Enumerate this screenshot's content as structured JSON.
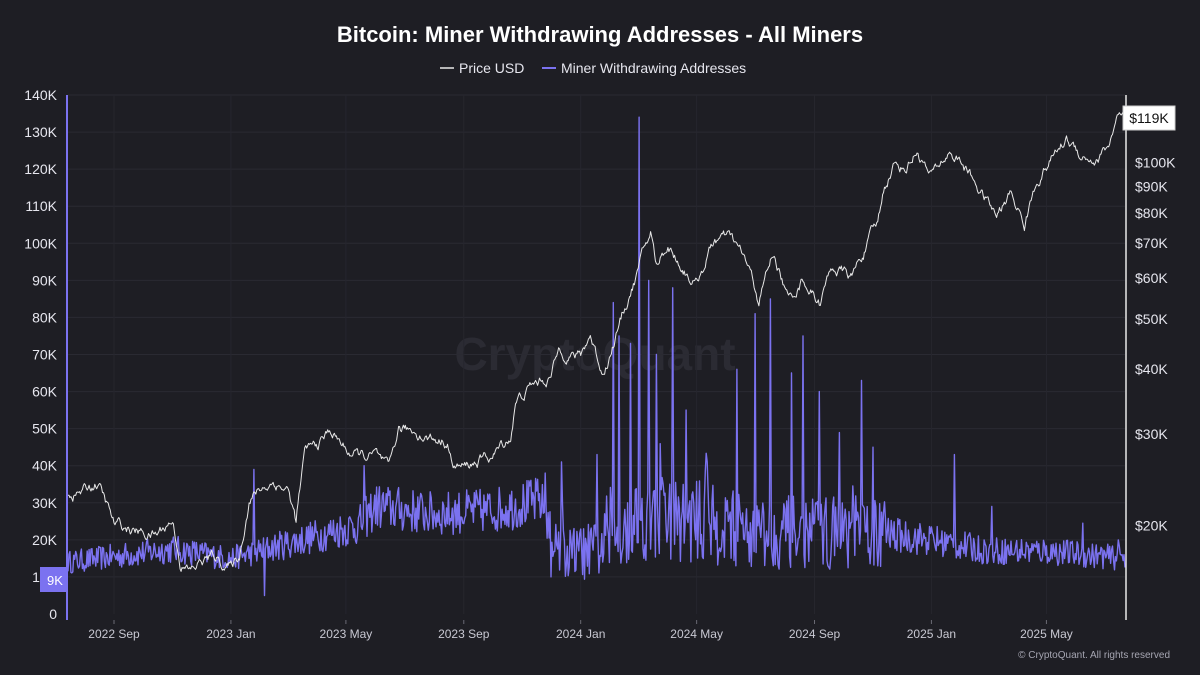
{
  "chart_data": {
    "type": "line",
    "title": "Bitcoin: Miner Withdrawing Addresses - All Miners",
    "legend": [
      "Price USD",
      "Miner Withdrawing Addresses"
    ],
    "legend_position": "top-center",
    "colors": {
      "background": "#1e1e24",
      "price": "#e8e8e8",
      "miners": "#7b72f0",
      "grid": "#2c2c34",
      "axis": "#7b72f0"
    },
    "x_ticks": [
      "2022 Sep",
      "2023 Jan",
      "2023 May",
      "2023 Sep",
      "2024 Jan",
      "2024 May",
      "2024 Sep",
      "2025 Jan",
      "2025 May"
    ],
    "x_range": [
      "2022-07-15",
      "2025-07-22"
    ],
    "y_left": {
      "label": "Miner Withdrawing Addresses",
      "ticks": [
        "0",
        "10K",
        "20K",
        "30K",
        "40K",
        "50K",
        "60K",
        "70K",
        "80K",
        "90K",
        "100K",
        "110K",
        "120K",
        "130K",
        "140K"
      ],
      "range": [
        0,
        140000
      ]
    },
    "y_right": {
      "label": "Price USD",
      "scale": "log",
      "ticks": [
        "$20K",
        "$30K",
        "$40K",
        "$50K",
        "$60K",
        "$70K",
        "$80K",
        "$90K",
        "$100K"
      ],
      "tick_values": [
        20000,
        30000,
        40000,
        50000,
        60000,
        70000,
        80000,
        90000,
        100000
      ],
      "range": [
        13500,
        135000
      ]
    },
    "last_value_labels": {
      "price": "$119K",
      "miners": "9K"
    },
    "series": [
      {
        "name": "Price USD",
        "axis": "right",
        "points": [
          [
            "2022-07-15",
            23000
          ],
          [
            "2022-08-01",
            23300
          ],
          [
            "2022-08-15",
            24200
          ],
          [
            "2022-09-01",
            20000
          ],
          [
            "2022-09-15",
            19700
          ],
          [
            "2022-10-01",
            19300
          ],
          [
            "2022-10-15",
            19200
          ],
          [
            "2022-11-01",
            20500
          ],
          [
            "2022-11-10",
            16800
          ],
          [
            "2022-11-20",
            16300
          ],
          [
            "2022-12-01",
            17000
          ],
          [
            "2022-12-15",
            17400
          ],
          [
            "2023-01-01",
            16600
          ],
          [
            "2023-01-10",
            17400
          ],
          [
            "2023-01-20",
            22500
          ],
          [
            "2023-02-01",
            23500
          ],
          [
            "2023-02-15",
            24300
          ],
          [
            "2023-03-01",
            23500
          ],
          [
            "2023-03-10",
            20300
          ],
          [
            "2023-03-20",
            27800
          ],
          [
            "2023-04-01",
            28500
          ],
          [
            "2023-04-15",
            30400
          ],
          [
            "2023-05-01",
            28000
          ],
          [
            "2023-05-15",
            27100
          ],
          [
            "2023-06-01",
            27200
          ],
          [
            "2023-06-15",
            25100
          ],
          [
            "2023-06-25",
            30500
          ],
          [
            "2023-07-15",
            30300
          ],
          [
            "2023-08-01",
            29300
          ],
          [
            "2023-08-15",
            29300
          ],
          [
            "2023-08-20",
            26100
          ],
          [
            "2023-09-01",
            25800
          ],
          [
            "2023-09-15",
            26600
          ],
          [
            "2023-10-01",
            27200
          ],
          [
            "2023-10-20",
            29700
          ],
          [
            "2023-10-25",
            34500
          ],
          [
            "2023-11-10",
            37000
          ],
          [
            "2023-12-01",
            38800
          ],
          [
            "2023-12-10",
            43800
          ],
          [
            "2024-01-01",
            42300
          ],
          [
            "2024-01-11",
            46500
          ],
          [
            "2024-01-23",
            39500
          ],
          [
            "2024-02-01",
            43000
          ],
          [
            "2024-02-15",
            51800
          ],
          [
            "2024-03-01",
            62000
          ],
          [
            "2024-03-14",
            73000
          ],
          [
            "2024-03-20",
            63000
          ],
          [
            "2024-04-01",
            69700
          ],
          [
            "2024-04-15",
            63400
          ],
          [
            "2024-05-01",
            58300
          ],
          [
            "2024-05-20",
            71000
          ],
          [
            "2024-06-05",
            71200
          ],
          [
            "2024-06-20",
            65000
          ],
          [
            "2024-07-05",
            54000
          ],
          [
            "2024-07-20",
            67000
          ],
          [
            "2024-08-05",
            54000
          ],
          [
            "2024-08-20",
            60000
          ],
          [
            "2024-09-06",
            53900
          ],
          [
            "2024-09-20",
            63000
          ],
          [
            "2024-10-10",
            60000
          ],
          [
            "2024-10-30",
            72000
          ],
          [
            "2024-11-06",
            75800
          ],
          [
            "2024-11-13",
            90000
          ],
          [
            "2024-11-22",
            98900
          ],
          [
            "2024-12-05",
            98000
          ],
          [
            "2024-12-17",
            106000
          ],
          [
            "2024-12-31",
            93500
          ],
          [
            "2025-01-20",
            105000
          ],
          [
            "2025-02-01",
            100000
          ],
          [
            "2025-02-25",
            86000
          ],
          [
            "2025-03-10",
            78500
          ],
          [
            "2025-03-25",
            87000
          ],
          [
            "2025-04-08",
            76000
          ],
          [
            "2025-04-22",
            93000
          ],
          [
            "2025-05-10",
            104000
          ],
          [
            "2025-05-22",
            111000
          ],
          [
            "2025-06-05",
            104500
          ],
          [
            "2025-06-22",
            101000
          ],
          [
            "2025-07-05",
            108000
          ],
          [
            "2025-07-14",
            121000
          ],
          [
            "2025-07-22",
            119000
          ]
        ]
      },
      {
        "name": "Miner Withdrawing Addresses",
        "axis": "left",
        "baseline": [
          [
            "2022-07-15",
            14000
          ],
          [
            "2022-09-01",
            15500
          ],
          [
            "2022-11-01",
            17500
          ],
          [
            "2023-01-01",
            15000
          ],
          [
            "2023-03-01",
            19000
          ],
          [
            "2023-04-15",
            22000
          ],
          [
            "2023-05-15",
            24000
          ],
          [
            "2023-06-01",
            29000
          ],
          [
            "2023-08-01",
            27000
          ],
          [
            "2023-10-01",
            28000
          ],
          [
            "2023-11-20",
            30500
          ],
          [
            "2023-12-10",
            16000
          ],
          [
            "2024-01-15",
            17000
          ],
          [
            "2024-03-01",
            26000
          ],
          [
            "2024-05-01",
            25000
          ],
          [
            "2024-07-01",
            22000
          ],
          [
            "2024-09-01",
            22000
          ],
          [
            "2024-11-01",
            22000
          ],
          [
            "2025-01-01",
            20000
          ],
          [
            "2025-03-01",
            17000
          ],
          [
            "2025-05-01",
            17000
          ],
          [
            "2025-07-22",
            15000
          ]
        ],
        "spikes": [
          [
            "2023-01-25",
            39000
          ],
          [
            "2023-02-05",
            5000
          ],
          [
            "2023-05-20",
            40000
          ],
          [
            "2023-11-25",
            38000
          ],
          [
            "2023-12-01",
            10000
          ],
          [
            "2023-12-12",
            41000
          ],
          [
            "2024-01-18",
            43000
          ],
          [
            "2024-02-04",
            84000
          ],
          [
            "2024-02-10",
            75000
          ],
          [
            "2024-02-22",
            73000
          ],
          [
            "2024-03-02",
            134000
          ],
          [
            "2024-03-12",
            90000
          ],
          [
            "2024-03-20",
            70000
          ],
          [
            "2024-04-06",
            88000
          ],
          [
            "2024-04-20",
            55000
          ],
          [
            "2024-05-12",
            41000
          ],
          [
            "2024-06-12",
            66000
          ],
          [
            "2024-07-01",
            81000
          ],
          [
            "2024-07-17",
            85000
          ],
          [
            "2024-08-08",
            65000
          ],
          [
            "2024-08-20",
            75000
          ],
          [
            "2024-09-06",
            60000
          ],
          [
            "2024-10-20",
            63000
          ],
          [
            "2024-11-01",
            45000
          ],
          [
            "2025-01-25",
            43000
          ],
          [
            "2025-03-05",
            29000
          ],
          [
            "2025-06-08",
            24500
          ],
          [
            "2025-07-15",
            20000
          ]
        ]
      }
    ]
  },
  "watermark": "CryptoQuant",
  "credit": "© CryptoQuant. All rights reserved"
}
